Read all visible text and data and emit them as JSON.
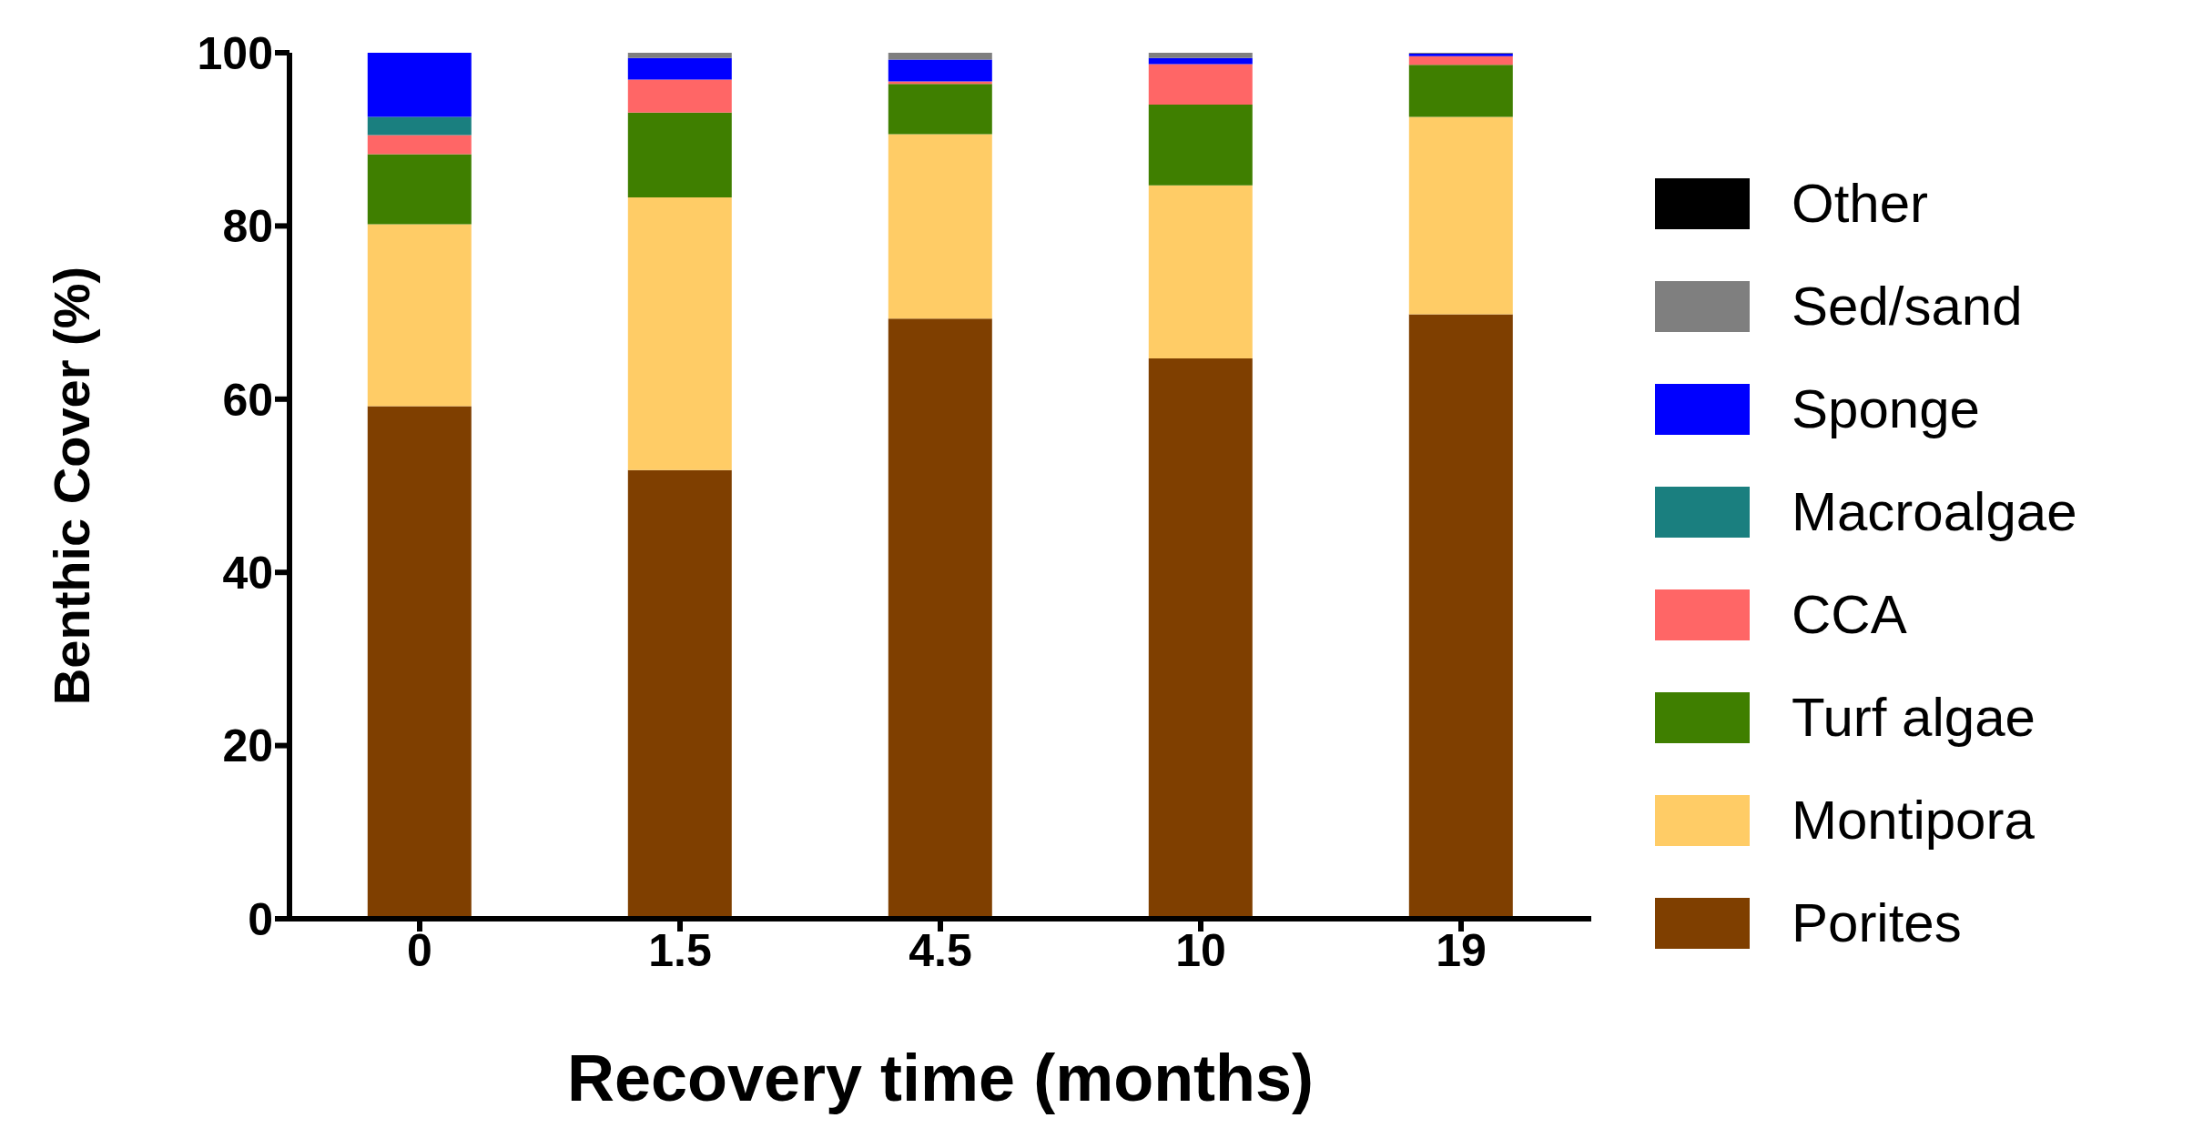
{
  "chart_data": {
    "type": "bar",
    "stacked": true,
    "xlabel": "Recovery time (months)",
    "ylabel": "Benthic Cover (%)",
    "categories": [
      "0",
      "1.5",
      "4.5",
      "10",
      "19"
    ],
    "ylim": [
      0,
      100
    ],
    "yticks": [
      0,
      20,
      40,
      60,
      80,
      100
    ],
    "legend": "right",
    "series": [
      {
        "name": "Porites",
        "color": "#7f3f00",
        "values": [
          59.2,
          51.8,
          69.3,
          64.7,
          69.8
        ]
      },
      {
        "name": "Montipora",
        "color": "#ffcc66",
        "values": [
          21.0,
          31.5,
          21.3,
          20.0,
          22.8
        ]
      },
      {
        "name": "Turf algae",
        "color": "#3f7f00",
        "values": [
          8.1,
          9.8,
          5.8,
          9.3,
          6.0
        ]
      },
      {
        "name": "CCA",
        "color": "#ff6666",
        "values": [
          2.2,
          3.8,
          0.3,
          4.7,
          1.0
        ]
      },
      {
        "name": "Macroalgae",
        "color": "#1a7f7f",
        "values": [
          2.1,
          0,
          0,
          0,
          0
        ]
      },
      {
        "name": "Sponge",
        "color": "#0000ff",
        "values": [
          7.4,
          2.5,
          2.5,
          0.7,
          0.3
        ]
      },
      {
        "name": "Sed/sand",
        "color": "#7f7f7f",
        "values": [
          0,
          0.6,
          0.9,
          0.6,
          0.1
        ]
      },
      {
        "name": "Other",
        "color": "#000000",
        "values": [
          0,
          0,
          0,
          0,
          0
        ]
      }
    ]
  }
}
